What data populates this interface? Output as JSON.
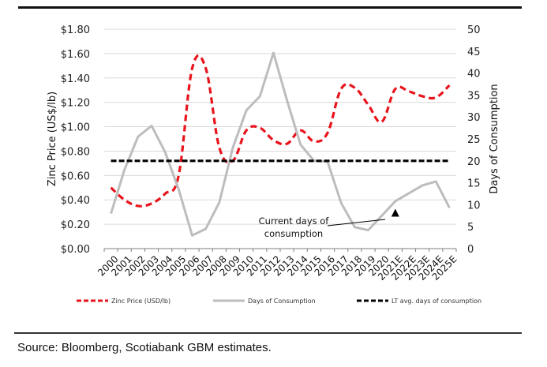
{
  "source": "Source: Bloomberg, Scotiabank GBM estimates.",
  "chart_data": {
    "type": "line",
    "title": "",
    "categories": [
      "2000",
      "2001",
      "2002",
      "2003",
      "2004",
      "2005",
      "2006",
      "2007",
      "2008",
      "2009",
      "2010",
      "2011",
      "2012",
      "2013",
      "2014",
      "2015",
      "2016",
      "2017",
      "2018",
      "2019",
      "2020",
      "2021E",
      "2022E",
      "2023E",
      "2024E",
      "2025E"
    ],
    "ylabel_left": "Zinc Price (US$/lb)",
    "ylabel_right": "Days of Consumption",
    "ylim_left": [
      0,
      1.8
    ],
    "ylim_right": [
      0,
      50
    ],
    "yticks_left": [
      "$0.00",
      "$0.20",
      "$0.40",
      "$0.60",
      "$0.80",
      "$1.00",
      "$1.20",
      "$1.40",
      "$1.60",
      "$1.80"
    ],
    "yticks_right": [
      "0",
      "5",
      "10",
      "15",
      "20",
      "25",
      "30",
      "35",
      "40",
      "45",
      "50"
    ],
    "grid": true,
    "legend_position": "bottom",
    "series": [
      {
        "name": "Zinc Price (USD/lb)",
        "axis": "left",
        "style": "dashed",
        "color": "#e8141c",
        "values": [
          0.5,
          0.4,
          0.35,
          0.37,
          0.45,
          0.6,
          1.48,
          1.48,
          0.83,
          0.72,
          0.97,
          0.99,
          0.89,
          0.86,
          0.97,
          0.88,
          0.95,
          1.31,
          1.32,
          1.18,
          1.04,
          1.31,
          1.29,
          1.25,
          1.24,
          1.34
        ]
      },
      {
        "name": "Days of Consumption",
        "axis": "right",
        "style": "solid",
        "color": "#bdbdbd",
        "values": [
          8,
          18,
          25.5,
          28,
          22,
          13.5,
          3,
          4.5,
          10.5,
          23,
          31.5,
          34.7,
          44.6,
          33.8,
          23.7,
          20,
          19.8,
          10.4,
          4.9,
          4.2,
          7.5,
          10.8,
          12.6,
          14.4,
          15.3,
          9.3
        ]
      },
      {
        "name": "LT avg. days of consumption",
        "axis": "right",
        "style": "dashed",
        "color": "#000000",
        "values": [
          20,
          20,
          20,
          20,
          20,
          20,
          20,
          20,
          20,
          20,
          20,
          20,
          20,
          20,
          20,
          20,
          20,
          20,
          20,
          20,
          20,
          20,
          20,
          20,
          20,
          20
        ]
      }
    ],
    "annotations": [
      {
        "text_line1": "Current days of",
        "text_line2": "consumption",
        "marker": "triangle",
        "category": "2021E",
        "value": 8,
        "axis": "right"
      }
    ]
  }
}
